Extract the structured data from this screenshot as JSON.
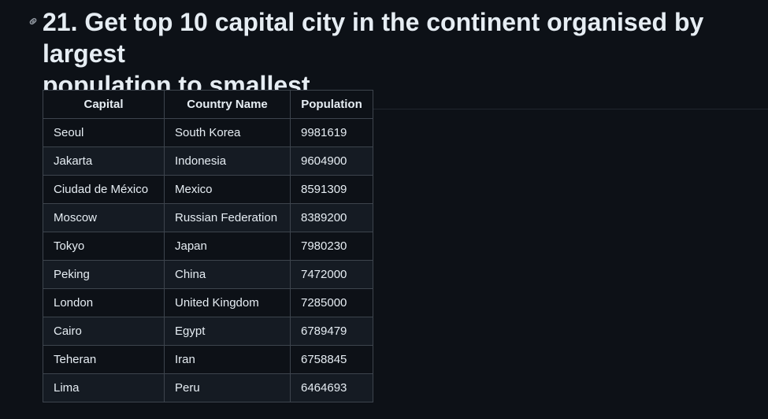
{
  "heading": {
    "line1": "21. Get top 10 capital city in the continent organised by largest",
    "line2": "population to smallest"
  },
  "icons": {
    "anchor": "link-icon"
  },
  "table": {
    "headers": [
      "Capital",
      "Country Name",
      "Population"
    ],
    "rows": [
      [
        "Seoul",
        "South Korea",
        "9981619"
      ],
      [
        "Jakarta",
        "Indonesia",
        "9604900"
      ],
      [
        "Ciudad de México",
        "Mexico",
        "8591309"
      ],
      [
        "Moscow",
        "Russian Federation",
        "8389200"
      ],
      [
        "Tokyo",
        "Japan",
        "7980230"
      ],
      [
        "Peking",
        "China",
        "7472000"
      ],
      [
        "London",
        "United Kingdom",
        "7285000"
      ],
      [
        "Cairo",
        "Egypt",
        "6789479"
      ],
      [
        "Teheran",
        "Iran",
        "6758845"
      ],
      [
        "Lima",
        "Peru",
        "6464693"
      ]
    ]
  },
  "colors": {
    "background": "#0d1117",
    "text": "#e6edf3",
    "border": "#3d444d",
    "row_alt": "#151b23"
  }
}
